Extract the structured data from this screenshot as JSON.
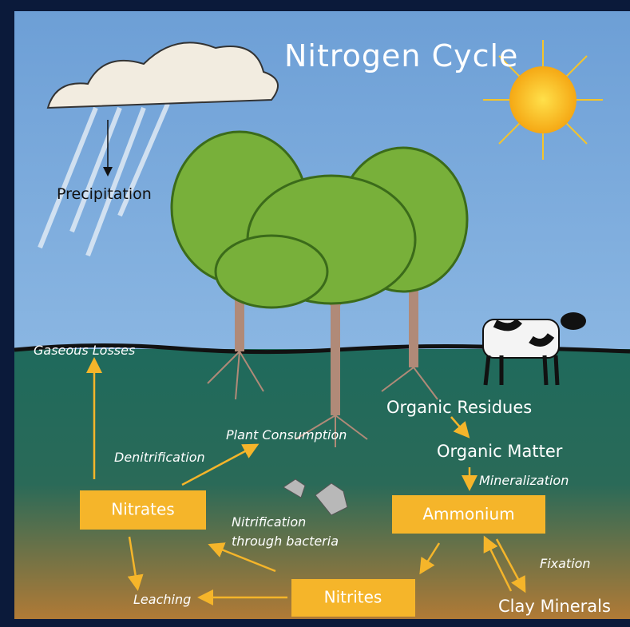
{
  "title": "Nitrogen Cycle",
  "labels": {
    "precipitation": "Precipitation",
    "gaseous_losses": "Gaseous Losses",
    "denitrification": "Denitrification",
    "plant_consumption": "Plant Consumption",
    "organic_residues": "Organic Residues",
    "organic_matter": "Organic Matter",
    "mineralization": "Mineralization",
    "nitrification_1": "Nitrification",
    "nitrification_2": "through bacteria",
    "fixation": "Fixation",
    "leaching": "Leaching",
    "clay_minerals": "Clay Minerals"
  },
  "boxes": {
    "nitrates": "Nitrates",
    "ammonium": "Ammonium",
    "nitrites": "Nitrites"
  }
}
